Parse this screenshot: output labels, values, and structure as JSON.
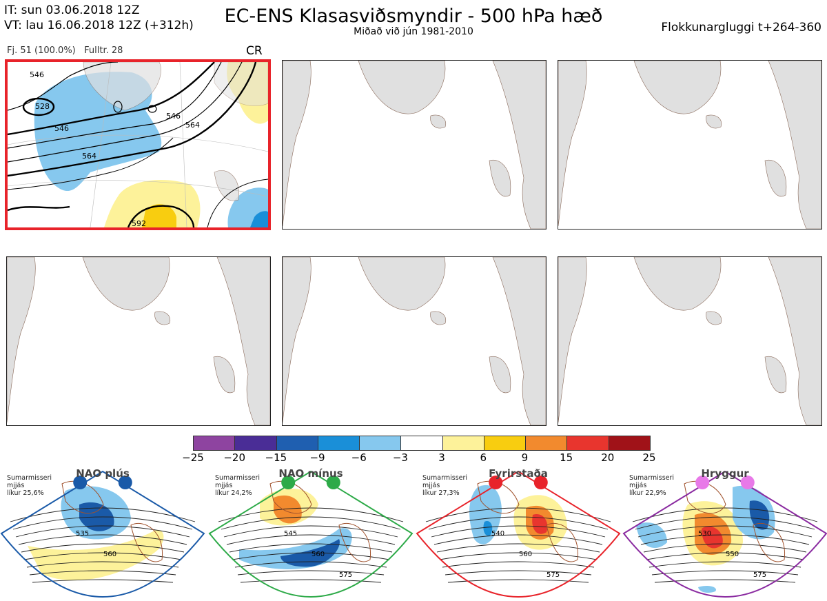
{
  "header": {
    "it_line": "IT: sun 03.06.2018 12Z",
    "vt_line": "VT: lau 16.06.2018 12Z  (+312h)",
    "title": "EC-ENS Klasasviðsmyndir - 500 hPa hæð",
    "subtitle": "Miðað við jún 1981-2010",
    "window": "Flokkunargluggi t+264-360"
  },
  "panel_meta": {
    "count": "Fj. 51 (100.0%)",
    "representative": "Fulltr. 28",
    "cluster_code": "CR"
  },
  "contour_labels": [
    "546",
    "528",
    "546",
    "546",
    "564",
    "564",
    "592"
  ],
  "colorbar": {
    "colors": [
      "#8e44a0",
      "#4a2d96",
      "#1f5fb0",
      "#1a8fd8",
      "#86c8ee",
      "#ffffff",
      "#fdf29a",
      "#f8cd10",
      "#f28a2e",
      "#e8352e",
      "#a01218"
    ],
    "ticks": [
      "−25",
      "−20",
      "−15",
      "−9",
      "−6",
      "−3",
      "3",
      "6",
      "9",
      "15",
      "20",
      "25"
    ]
  },
  "regimes": [
    {
      "name": "NAO plús",
      "desc": "Sumarmisseri\nmjjás\nlíkur 25,6%",
      "color": "#1a5aa8",
      "dot": "#1a5aa8",
      "labels": [
        "535",
        "560"
      ]
    },
    {
      "name": "NAO mínus",
      "desc": "Sumarmisseri\nmjjás\nlíkur 24,2%",
      "color": "#2daa48",
      "dot": "#2daa48",
      "labels": [
        "545",
        "560",
        "575"
      ]
    },
    {
      "name": "Fyrirstaða",
      "desc": "Sumarmisseri\nmjjás\nlíkur 27,3%",
      "color": "#e8232a",
      "dot": "#e8232a",
      "labels": [
        "540",
        "560",
        "575"
      ]
    },
    {
      "name": "Hryggur",
      "desc": "Sumarmisseri\nmjjás\nlíkur 22,9%",
      "color": "#8a2aa0",
      "dot": "#e879e8",
      "labels": [
        "530",
        "550",
        "575"
      ]
    }
  ]
}
